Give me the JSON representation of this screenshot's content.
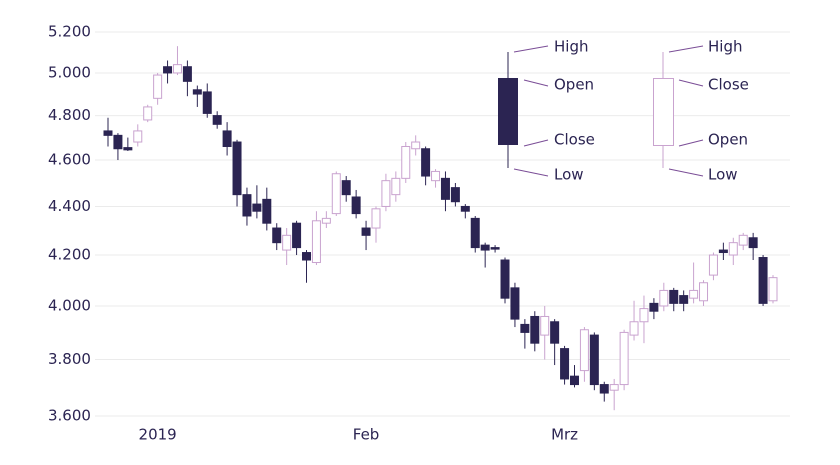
{
  "chart_data": {
    "type": "candlestick",
    "categories": [
      null,
      null,
      null,
      null,
      null,
      "2019",
      null,
      null,
      null,
      null,
      null,
      null,
      null,
      null,
      null,
      null,
      null,
      null,
      null,
      null,
      null,
      null,
      null,
      null,
      null,
      null,
      "Feb",
      null,
      null,
      null,
      null,
      null,
      null,
      null,
      null,
      null,
      null,
      null,
      null,
      null,
      null,
      null,
      null,
      null,
      null,
      null,
      "Mrz",
      null,
      null,
      null,
      null,
      null,
      null,
      null,
      null,
      null,
      null,
      null,
      null,
      null,
      null,
      null,
      null,
      null,
      null,
      null,
      null,
      null
    ],
    "open": [
      4730,
      4710,
      4655,
      4680,
      4780,
      4880,
      5030,
      5000,
      5030,
      4920,
      4910,
      4800,
      4730,
      4680,
      4450,
      4410,
      4430,
      4310,
      4220,
      4330,
      4210,
      4170,
      4330,
      4370,
      4510,
      4440,
      4310,
      4310,
      4400,
      4450,
      4520,
      4650,
      4650,
      4510,
      4520,
      4480,
      4400,
      4350,
      4240,
      4230,
      4180,
      4070,
      3930,
      3960,
      3890,
      3940,
      3840,
      3740,
      3760,
      3890,
      3710,
      3690,
      3710,
      3890,
      3940,
      4010,
      4000,
      4060,
      4040,
      4030,
      4020,
      4120,
      4220,
      4200,
      4240,
      4270,
      4190,
      4020
    ],
    "high": [
      4790,
      4720,
      4700,
      4760,
      4850,
      5000,
      5060,
      5130,
      5060,
      4940,
      4950,
      4820,
      4770,
      4690,
      4480,
      4490,
      4480,
      4330,
      4310,
      4340,
      4220,
      4380,
      4380,
      4550,
      4530,
      4470,
      4340,
      4400,
      4540,
      4550,
      4680,
      4710,
      4660,
      4560,
      4550,
      4500,
      4410,
      4360,
      4250,
      4240,
      4190,
      4090,
      3950,
      3980,
      4000,
      3950,
      3850,
      3780,
      3920,
      3900,
      3720,
      3730,
      3910,
      4020,
      4040,
      4030,
      4090,
      4070,
      4060,
      4170,
      4100,
      4210,
      4250,
      4270,
      4290,
      4290,
      4200,
      4120
    ],
    "low": [
      4660,
      4600,
      4640,
      4660,
      4770,
      4850,
      4950,
      4990,
      4890,
      4840,
      4790,
      4740,
      4620,
      4400,
      4320,
      4350,
      4300,
      4220,
      4160,
      4200,
      4090,
      4160,
      4310,
      4360,
      4420,
      4350,
      4220,
      4250,
      4380,
      4420,
      4500,
      4620,
      4490,
      4480,
      4380,
      4400,
      4350,
      4210,
      4150,
      4210,
      4010,
      3920,
      3840,
      3830,
      3800,
      3780,
      3710,
      3700,
      3720,
      3690,
      3650,
      3620,
      3690,
      3870,
      3860,
      3950,
      3980,
      3980,
      3980,
      4010,
      4000,
      4100,
      4180,
      4160,
      4220,
      4180,
      4000,
      4010
    ],
    "close": [
      4710,
      4650,
      4645,
      4730,
      4840,
      4990,
      5000,
      5040,
      4960,
      4900,
      4810,
      4760,
      4660,
      4450,
      4360,
      4380,
      4330,
      4250,
      4280,
      4230,
      4180,
      4340,
      4350,
      4540,
      4450,
      4370,
      4280,
      4390,
      4510,
      4520,
      4660,
      4680,
      4530,
      4550,
      4430,
      4420,
      4380,
      4230,
      4220,
      4225,
      4030,
      3950,
      3900,
      3860,
      3960,
      3860,
      3730,
      3710,
      3910,
      3710,
      3680,
      3710,
      3900,
      3940,
      3990,
      3980,
      4060,
      4010,
      4010,
      4060,
      4090,
      4200,
      4210,
      4250,
      4280,
      4230,
      4010,
      4110
    ],
    "up_color": "#c9a3cf",
    "down_color": "#2b2452",
    "log_scale": true,
    "grid": true,
    "ylim": [
      3600,
      5200
    ],
    "yticks": [
      {
        "value": 3600,
        "label": "3.600"
      },
      {
        "value": 3800,
        "label": "3.800"
      },
      {
        "value": 4000,
        "label": "4.000"
      },
      {
        "value": 4200,
        "label": "4.200"
      },
      {
        "value": 4400,
        "label": "4.400"
      },
      {
        "value": 4600,
        "label": "4.600"
      },
      {
        "value": 4800,
        "label": "4.800"
      },
      {
        "value": 5000,
        "label": "5.000"
      },
      {
        "value": 5200,
        "label": "5.200"
      }
    ],
    "legend": {
      "falling": [
        "High",
        "Open",
        "Close",
        "Low"
      ],
      "rising": [
        "High",
        "Close",
        "Open",
        "Low"
      ]
    }
  }
}
